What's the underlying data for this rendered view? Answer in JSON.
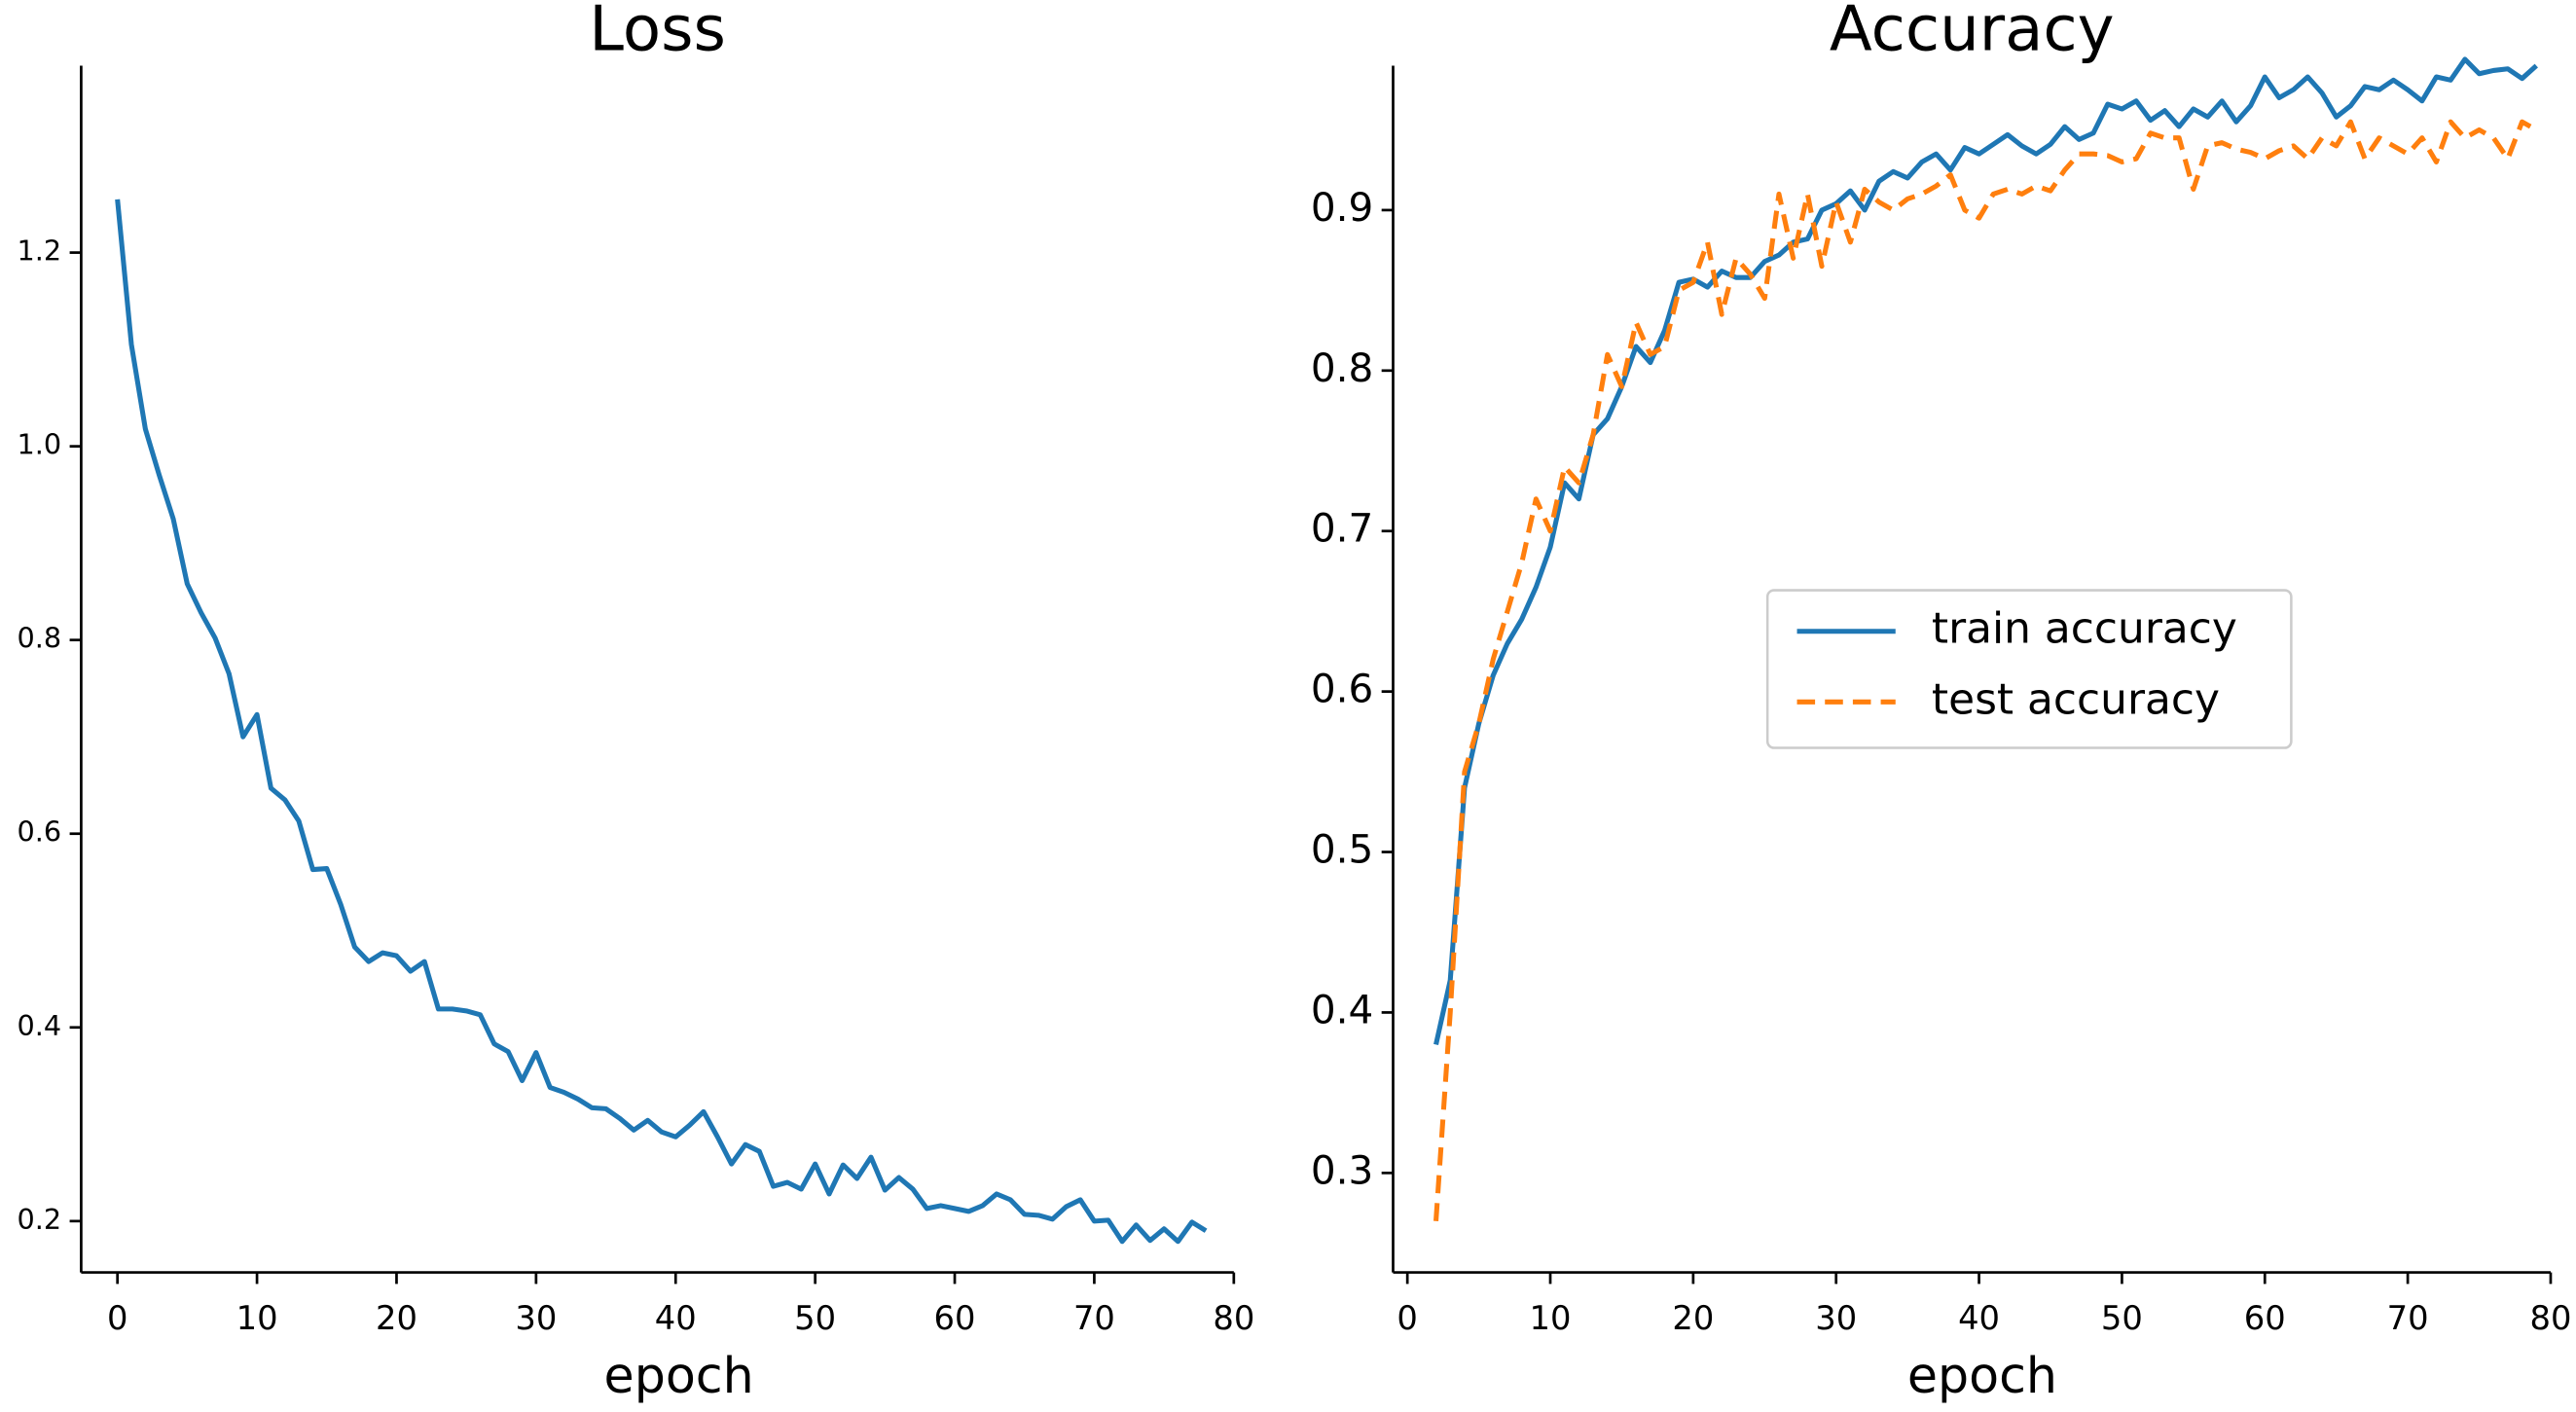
{
  "chart_data": [
    {
      "type": "line",
      "title": "Loss",
      "x_label": "epoch",
      "x": [
        0,
        1,
        2,
        3,
        4,
        5,
        6,
        7,
        8,
        9,
        10,
        11,
        12,
        13,
        14,
        15,
        16,
        17,
        18,
        19,
        20,
        21,
        22,
        23,
        24,
        25,
        26,
        27,
        28,
        29,
        30,
        31,
        32,
        33,
        34,
        35,
        36,
        37,
        38,
        39,
        40,
        41,
        42,
        43,
        44,
        45,
        46,
        47,
        48,
        49,
        50,
        51,
        52,
        53,
        54,
        55,
        56,
        57,
        58,
        59,
        60,
        61,
        62,
        63,
        64,
        65,
        66,
        67,
        68,
        69,
        70,
        71,
        72,
        73,
        74,
        75,
        76,
        77,
        78
      ],
      "values": [
        1.255,
        1.105,
        1.018,
        0.97,
        0.925,
        0.858,
        0.828,
        0.802,
        0.765,
        0.7,
        0.723,
        0.647,
        0.635,
        0.613,
        0.563,
        0.564,
        0.527,
        0.483,
        0.468,
        0.477,
        0.474,
        0.458,
        0.468,
        0.419,
        0.419,
        0.417,
        0.413,
        0.383,
        0.375,
        0.345,
        0.374,
        0.338,
        0.333,
        0.326,
        0.317,
        0.316,
        0.306,
        0.294,
        0.304,
        0.292,
        0.287,
        0.299,
        0.313,
        0.287,
        0.259,
        0.279,
        0.272,
        0.236,
        0.24,
        0.233,
        0.259,
        0.228,
        0.258,
        0.244,
        0.266,
        0.232,
        0.245,
        0.233,
        0.213,
        0.216,
        0.213,
        0.21,
        0.216,
        0.228,
        0.222,
        0.207,
        0.206,
        0.202,
        0.215,
        0.222,
        0.2,
        0.201,
        0.179,
        0.196,
        0.18,
        0.192,
        0.179,
        0.199,
        0.19
      ],
      "color": "#1f77b4",
      "xlim": [
        -2.6,
        80
      ],
      "xticks": [
        0,
        10,
        20,
        30,
        40,
        50,
        60,
        70,
        80
      ],
      "ylim": [
        0.147,
        1.393
      ],
      "yticks": [
        0.2,
        0.4,
        0.6,
        0.8,
        {
          "value": 1,
          "label": "1.0"
        },
        1.2
      ]
    },
    {
      "type": "line",
      "title": "Accuracy",
      "x_label": "epoch",
      "x": [
        2,
        3,
        4,
        5,
        6,
        7,
        8,
        9,
        10,
        11,
        12,
        13,
        14,
        15,
        16,
        17,
        18,
        19,
        20,
        21,
        22,
        23,
        24,
        25,
        26,
        27,
        28,
        29,
        30,
        31,
        32,
        33,
        34,
        35,
        36,
        37,
        38,
        39,
        40,
        41,
        42,
        43,
        44,
        45,
        46,
        47,
        48,
        49,
        50,
        51,
        52,
        53,
        54,
        55,
        56,
        57,
        58,
        59,
        60,
        61,
        62,
        63,
        64,
        65,
        66,
        67,
        68,
        69,
        70,
        71,
        72,
        73,
        74,
        75,
        76,
        77,
        78,
        79
      ],
      "series": [
        {
          "name": "train accuracy",
          "color": "#1f77b4",
          "line_style": "solid",
          "values": [
            0.38,
            0.42,
            0.54,
            0.58,
            0.61,
            0.63,
            0.645,
            0.665,
            0.69,
            0.73,
            0.72,
            0.76,
            0.77,
            0.79,
            0.815,
            0.805,
            0.825,
            0.855,
            0.857,
            0.852,
            0.862,
            0.858,
            0.858,
            0.868,
            0.872,
            0.88,
            0.882,
            0.9,
            0.904,
            0.912,
            0.9,
            0.918,
            0.924,
            0.92,
            0.93,
            0.935,
            0.925,
            0.939,
            0.935,
            0.941,
            0.947,
            0.94,
            0.935,
            0.941,
            0.952,
            0.944,
            0.948,
            0.966,
            0.963,
            0.968,
            0.956,
            0.962,
            0.952,
            0.963,
            0.958,
            0.968,
            0.955,
            0.965,
            0.983,
            0.97,
            0.975,
            0.983,
            0.973,
            0.958,
            0.965,
            0.977,
            0.975,
            0.981,
            0.975,
            0.968,
            0.983,
            0.981,
            0.994,
            0.985,
            0.987,
            0.988,
            0.982,
            0.99
          ]
        },
        {
          "name": "test accuracy",
          "color": "#ff7f0e",
          "line_style": "dashed",
          "values": [
            0.27,
            0.4,
            0.55,
            0.58,
            0.62,
            0.65,
            0.68,
            0.72,
            0.7,
            0.74,
            0.73,
            0.76,
            0.81,
            0.79,
            0.83,
            0.81,
            0.815,
            0.85,
            0.855,
            0.88,
            0.835,
            0.87,
            0.86,
            0.845,
            0.91,
            0.87,
            0.91,
            0.865,
            0.905,
            0.88,
            0.913,
            0.905,
            0.9,
            0.907,
            0.91,
            0.915,
            0.922,
            0.9,
            0.895,
            0.91,
            0.913,
            0.91,
            0.915,
            0.912,
            0.925,
            0.935,
            0.935,
            0.934,
            0.93,
            0.932,
            0.948,
            0.945,
            0.945,
            0.913,
            0.94,
            0.942,
            0.938,
            0.936,
            0.932,
            0.937,
            0.94,
            0.932,
            0.945,
            0.94,
            0.955,
            0.932,
            0.945,
            0.94,
            0.935,
            0.945,
            0.93,
            0.955,
            0.945,
            0.95,
            0.945,
            0.932,
            0.955,
            0.95
          ]
        }
      ],
      "xlim": [
        -1,
        80
      ],
      "xticks": [
        0,
        10,
        20,
        30,
        40,
        50,
        60,
        70,
        80
      ],
      "ylim": [
        0.238,
        0.99
      ],
      "yticks": [
        0.3,
        0.4,
        0.5,
        0.6,
        0.7,
        0.8,
        0.9
      ],
      "legend": "center"
    }
  ]
}
